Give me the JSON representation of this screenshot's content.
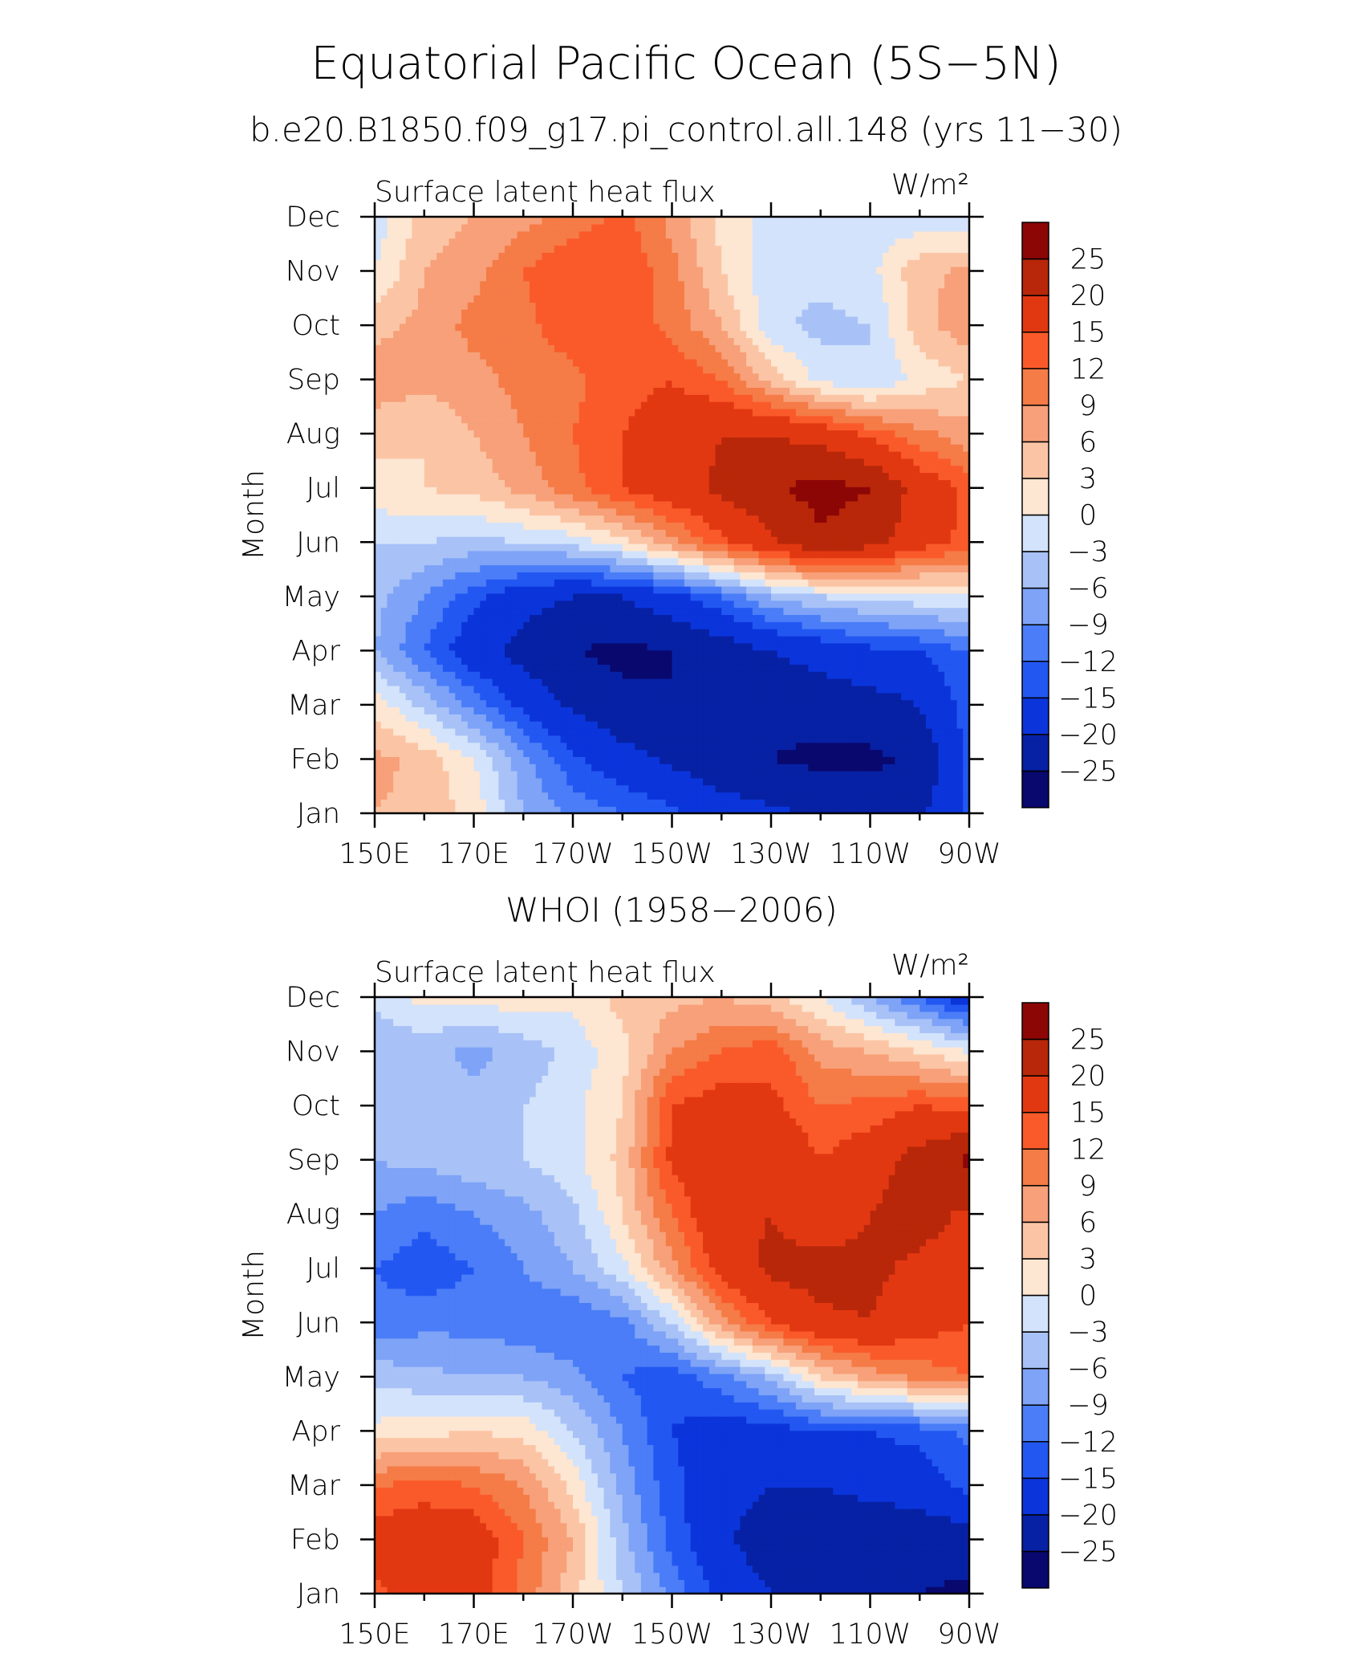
{
  "figure": {
    "title": "Equatorial Pacific Ocean (5S−5N)",
    "top_subtitle": "b.e20.B1850.f09_g17.pi_control.all.148 (yrs 11−30)",
    "bottom_subtitle": "WHOI (1958−2006)"
  },
  "colors": {
    "palette": [
      "#08086e",
      "#0721a5",
      "#0b35db",
      "#2357f2",
      "#4a7df7",
      "#7ea3f7",
      "#a8c2f7",
      "#d3e3fb",
      "#fde6d2",
      "#fbc5a5",
      "#f7a079",
      "#f57b47",
      "#fa5a2a",
      "#e23812",
      "#b82709",
      "#8c0606"
    ],
    "boundaries": [
      -25,
      -20,
      -15,
      -12,
      -9,
      -6,
      -3,
      0,
      3,
      6,
      9,
      12,
      15,
      20,
      25
    ]
  },
  "chart_data": [
    {
      "type": "heatmap",
      "name": "model",
      "left_label": "Surface latent heat flux",
      "right_label": "W/m²",
      "ylabel": "Month",
      "x": [
        150,
        160,
        170,
        180,
        190,
        200,
        210,
        220,
        230,
        240,
        250,
        260,
        270
      ],
      "x_tick_values": [
        150,
        170,
        190,
        210,
        230,
        250,
        270
      ],
      "x_tick_labels": [
        "150E",
        "170E",
        "170W",
        "150W",
        "130W",
        "110W",
        "90W"
      ],
      "y_tick_labels": [
        "Jan",
        "Feb",
        "Mar",
        "Apr",
        "May",
        "Jun",
        "Jul",
        "Aug",
        "Sep",
        "Oct",
        "Nov",
        "Dec"
      ],
      "colorbar_labels": [
        "−25",
        "−20",
        "−15",
        "−12",
        "−9",
        "−6",
        "−3",
        "0",
        "3",
        "6",
        "9",
        "12",
        "15",
        "20",
        "25"
      ],
      "z": [
        [
          6,
          5,
          2,
          -6,
          -10,
          -12,
          -14,
          -17,
          -19,
          -21,
          -22,
          -21,
          -14
        ],
        [
          7,
          5,
          0,
          -8,
          -14,
          -18,
          -21,
          -24,
          -25,
          -26,
          -26,
          -24,
          -14
        ],
        [
          2,
          -4,
          -10,
          -16,
          -21,
          -24,
          -25,
          -25,
          -24,
          -23,
          -22,
          -20,
          -13
        ],
        [
          -6,
          -12,
          -18,
          -22,
          -25,
          -26,
          -25,
          -23,
          -20,
          -18,
          -16,
          -15,
          -12
        ],
        [
          -5,
          -9,
          -14,
          -18,
          -20,
          -20,
          -17,
          -12,
          -6,
          -3,
          -2,
          -1,
          0
        ],
        [
          -3,
          -3,
          -4,
          -3,
          -2,
          2,
          8,
          14,
          19,
          24,
          22,
          17,
          14
        ],
        [
          2,
          3,
          4,
          7,
          11,
          15,
          18,
          21,
          24,
          27,
          25,
          18,
          14
        ],
        [
          4,
          3,
          6,
          9,
          12,
          15,
          17,
          20,
          20,
          18,
          14,
          10,
          7
        ],
        [
          8,
          7,
          8,
          10,
          11,
          14,
          15,
          12,
          5,
          -1,
          -3,
          1,
          3
        ],
        [
          5,
          7,
          10,
          11,
          14,
          14,
          11,
          6,
          -2,
          -4,
          -3,
          5,
          8
        ],
        [
          0,
          6,
          8,
          12,
          15,
          15,
          10,
          3,
          -2,
          -2,
          -1,
          5,
          7
        ],
        [
          -2,
          4,
          6,
          8,
          10,
          13,
          8,
          2,
          -1,
          -2,
          -2,
          -2,
          -3
        ]
      ]
    },
    {
      "type": "heatmap",
      "name": "observed",
      "left_label": "Surface latent heat flux",
      "right_label": "W/m²",
      "ylabel": "Month",
      "x": [
        150,
        160,
        170,
        180,
        190,
        200,
        210,
        220,
        230,
        240,
        250,
        260,
        270
      ],
      "x_tick_values": [
        150,
        170,
        190,
        210,
        230,
        250,
        270
      ],
      "x_tick_labels": [
        "150E",
        "170E",
        "170W",
        "150W",
        "130W",
        "110W",
        "90W"
      ],
      "y_tick_labels": [
        "Jan",
        "Feb",
        "Mar",
        "Apr",
        "May",
        "Jun",
        "Jul",
        "Aug",
        "Sep",
        "Oct",
        "Nov",
        "Dec"
      ],
      "colorbar_labels": [
        "−25",
        "−20",
        "−15",
        "−12",
        "−9",
        "−6",
        "−3",
        "0",
        "3",
        "6",
        "9",
        "12",
        "15",
        "20",
        "25"
      ],
      "z": [
        [
          14,
          18,
          17,
          11,
          4,
          -3,
          -10,
          -16,
          -20,
          -22,
          -24,
          -25,
          -26
        ],
        [
          17,
          19,
          18,
          12,
          6,
          -5,
          -13,
          -19,
          -23,
          -25,
          -25,
          -24,
          -22
        ],
        [
          12,
          13,
          12,
          9,
          2,
          -7,
          -14,
          -18,
          -20,
          -20,
          -18,
          -17,
          -14
        ],
        [
          1,
          2,
          3,
          2,
          -3,
          -9,
          -15,
          -17,
          -17,
          -15,
          -15,
          -14,
          -11
        ],
        [
          -4,
          -5,
          -6,
          -6,
          -8,
          -12,
          -14,
          -10,
          -5,
          3,
          7,
          10,
          12
        ],
        [
          -11,
          -10,
          -10,
          -11,
          -12,
          -10,
          -3,
          8,
          15,
          19,
          20,
          17,
          15
        ],
        [
          -12,
          -14,
          -12,
          -9,
          -6,
          -1,
          8,
          17,
          21,
          22,
          21,
          19,
          17
        ],
        [
          -9,
          -11,
          -9,
          -7,
          -4,
          3,
          12,
          19,
          20,
          17,
          20,
          22,
          19
        ],
        [
          -6,
          -5,
          -4,
          -3,
          -1,
          4,
          16,
          18,
          20,
          15,
          18,
          22,
          26
        ],
        [
          -5,
          -3,
          -5,
          -3,
          -1,
          3,
          15,
          17,
          16,
          12,
          13,
          15,
          14
        ],
        [
          -6,
          -5,
          -7,
          -5,
          -2,
          2,
          9,
          12,
          14,
          8,
          6,
          3,
          0
        ],
        [
          -2,
          1,
          1,
          2,
          1,
          4,
          5,
          6,
          4,
          0,
          -6,
          -12,
          -18
        ]
      ]
    }
  ]
}
